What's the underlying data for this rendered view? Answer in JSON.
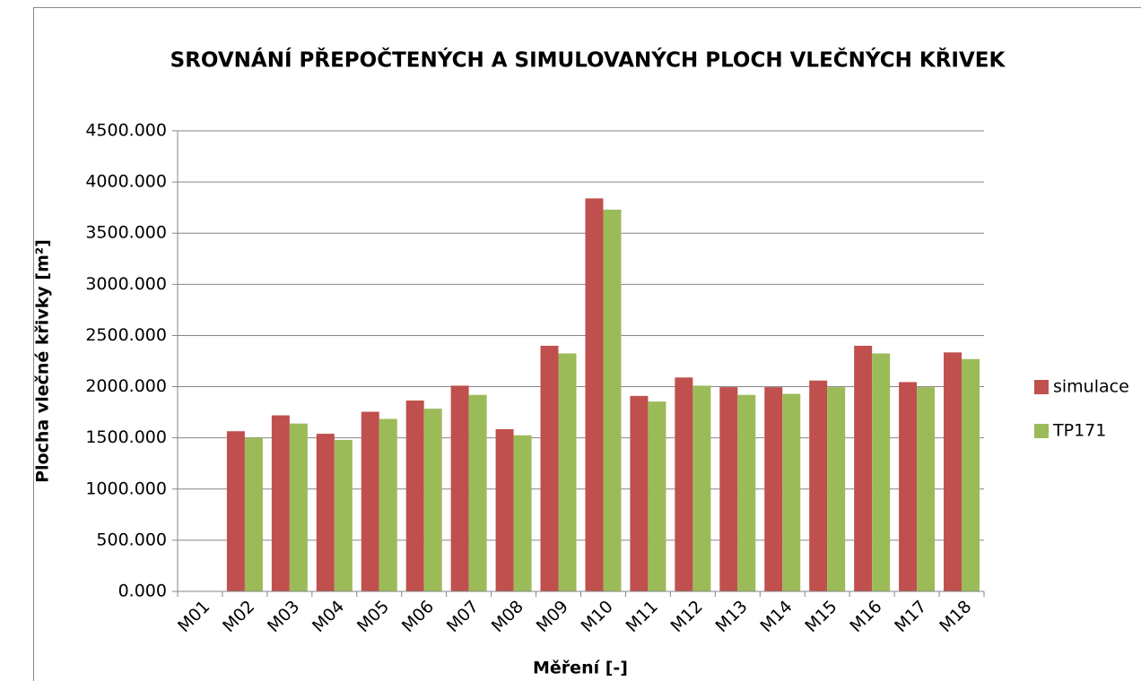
{
  "chart_data": {
    "type": "bar",
    "title": "SROVNÁNÍ PŘEPOČTENÝCH A SIMULOVANÝCH PLOCH VLEČNÝCH KŘIVEK",
    "y_label": "Plocha vlečné křivky [m²]",
    "x_label": "Měření [-]",
    "categories": [
      "M01",
      "M02",
      "M03",
      "M04",
      "M05",
      "M06",
      "M07",
      "M08",
      "M09",
      "M10",
      "M11",
      "M12",
      "M13",
      "M14",
      "M15",
      "M16",
      "M17",
      "M18"
    ],
    "series": [
      {
        "name": "simulace",
        "color": "#c0504d",
        "values": [
          null,
          1565,
          1720,
          1540,
          1755,
          1865,
          2010,
          1585,
          2400,
          3840,
          1910,
          2090,
          1995,
          1995,
          2060,
          2400,
          2045,
          2335
        ]
      },
      {
        "name": "TP171",
        "color": "#9bbb59",
        "values": [
          null,
          1500,
          1640,
          1480,
          1685,
          1785,
          1920,
          1525,
          2325,
          3730,
          1855,
          2010,
          1920,
          1930,
          1995,
          2325,
          1995,
          2270
        ]
      }
    ],
    "ylim": [
      0,
      4500
    ],
    "yticks": [
      {
        "value": 0,
        "label": "0.000"
      },
      {
        "value": 500,
        "label": "500.000"
      },
      {
        "value": 1000,
        "label": "1000.000"
      },
      {
        "value": 1500,
        "label": "1500.000"
      },
      {
        "value": 2000,
        "label": "2000.000"
      },
      {
        "value": 2500,
        "label": "2500.000"
      },
      {
        "value": 3000,
        "label": "3000.000"
      },
      {
        "value": 3500,
        "label": "3500.000"
      },
      {
        "value": 4000,
        "label": "4000.000"
      },
      {
        "value": 4500,
        "label": "4500.000"
      }
    ],
    "grid": true,
    "legend": "right"
  }
}
